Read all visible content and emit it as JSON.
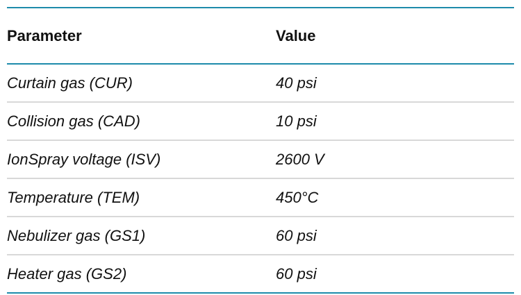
{
  "table": {
    "headers": [
      "Parameter",
      "Value"
    ],
    "rows": [
      [
        "Curtain gas (CUR)",
        "40 psi"
      ],
      [
        "Collision gas (CAD)",
        "10 psi"
      ],
      [
        "IonSpray voltage (ISV)",
        "2600 V"
      ],
      [
        "Temperature (TEM)",
        "450°C"
      ],
      [
        "Nebulizer gas (GS1)",
        "60 psi"
      ],
      [
        "Heater gas (GS2)",
        "60 psi"
      ]
    ],
    "colors": {
      "accent": "#1a88a8",
      "rule": "#d8d8d8"
    }
  }
}
